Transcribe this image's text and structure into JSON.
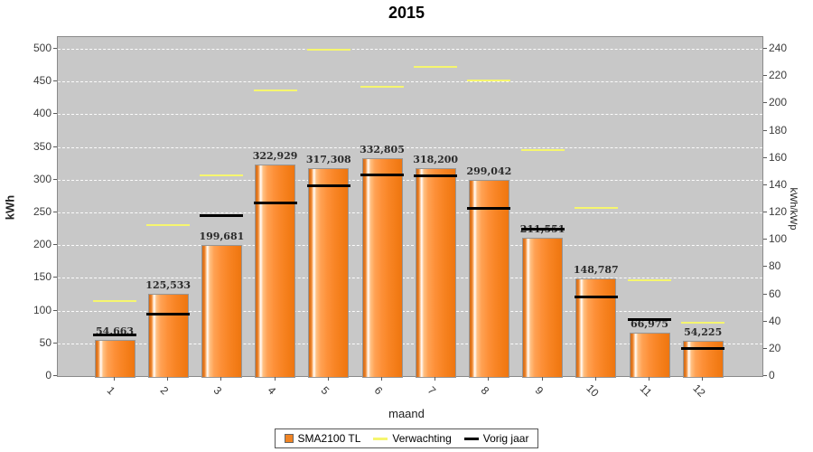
{
  "title": "2015",
  "chart_data": {
    "type": "bar",
    "title": "2015",
    "xlabel": "maand",
    "categories": [
      "1",
      "2",
      "3",
      "4",
      "5",
      "6",
      "7",
      "8",
      "9",
      "10",
      "11",
      "12"
    ],
    "left_axis": {
      "label": "kWh",
      "range": [
        0,
        500
      ],
      "ticks": [
        0,
        50,
        100,
        150,
        200,
        250,
        300,
        350,
        400,
        450,
        500
      ]
    },
    "right_axis": {
      "label": "kWh/kWp",
      "range": [
        0,
        240
      ],
      "ticks": [
        0,
        20,
        40,
        60,
        80,
        100,
        120,
        140,
        160,
        180,
        200,
        220,
        240
      ]
    },
    "grid": "white-dashed",
    "plot_background": "#c8c8c8",
    "legend_position": "bottom",
    "series": [
      {
        "name": "SMA2100 TL",
        "type": "bar",
        "color": "#f08424",
        "values": [
          54.663,
          125.533,
          199.681,
          322.929,
          317.308,
          332.805,
          318.2,
          299.042,
          211.551,
          148.787,
          66.975,
          54.225
        ],
        "value_labels": [
          "54,663",
          "125,533",
          "199,681",
          "322,929",
          "317,308",
          "332,805",
          "318,200",
          "299,042",
          "211,551",
          "148,787",
          "66,975",
          "54,225"
        ]
      },
      {
        "name": "Verwachting",
        "type": "level-line",
        "color": "#f6f66e",
        "values": [
          115,
          230,
          307,
          437,
          499,
          442,
          472,
          452,
          345,
          257,
          146,
          82
        ]
      },
      {
        "name": "Vorig jaar",
        "type": "level-line",
        "color": "#000000",
        "values": [
          63,
          95,
          246,
          265,
          291,
          308,
          307,
          257,
          225,
          122,
          87,
          43
        ]
      }
    ]
  },
  "legend": {
    "item1": "SMA2100 TL",
    "item2": "Verwachting",
    "item3": "Vorig jaar"
  },
  "axes": {
    "left_label": "kWh",
    "right_label": "kWh/kWp",
    "x_label": "maand"
  }
}
